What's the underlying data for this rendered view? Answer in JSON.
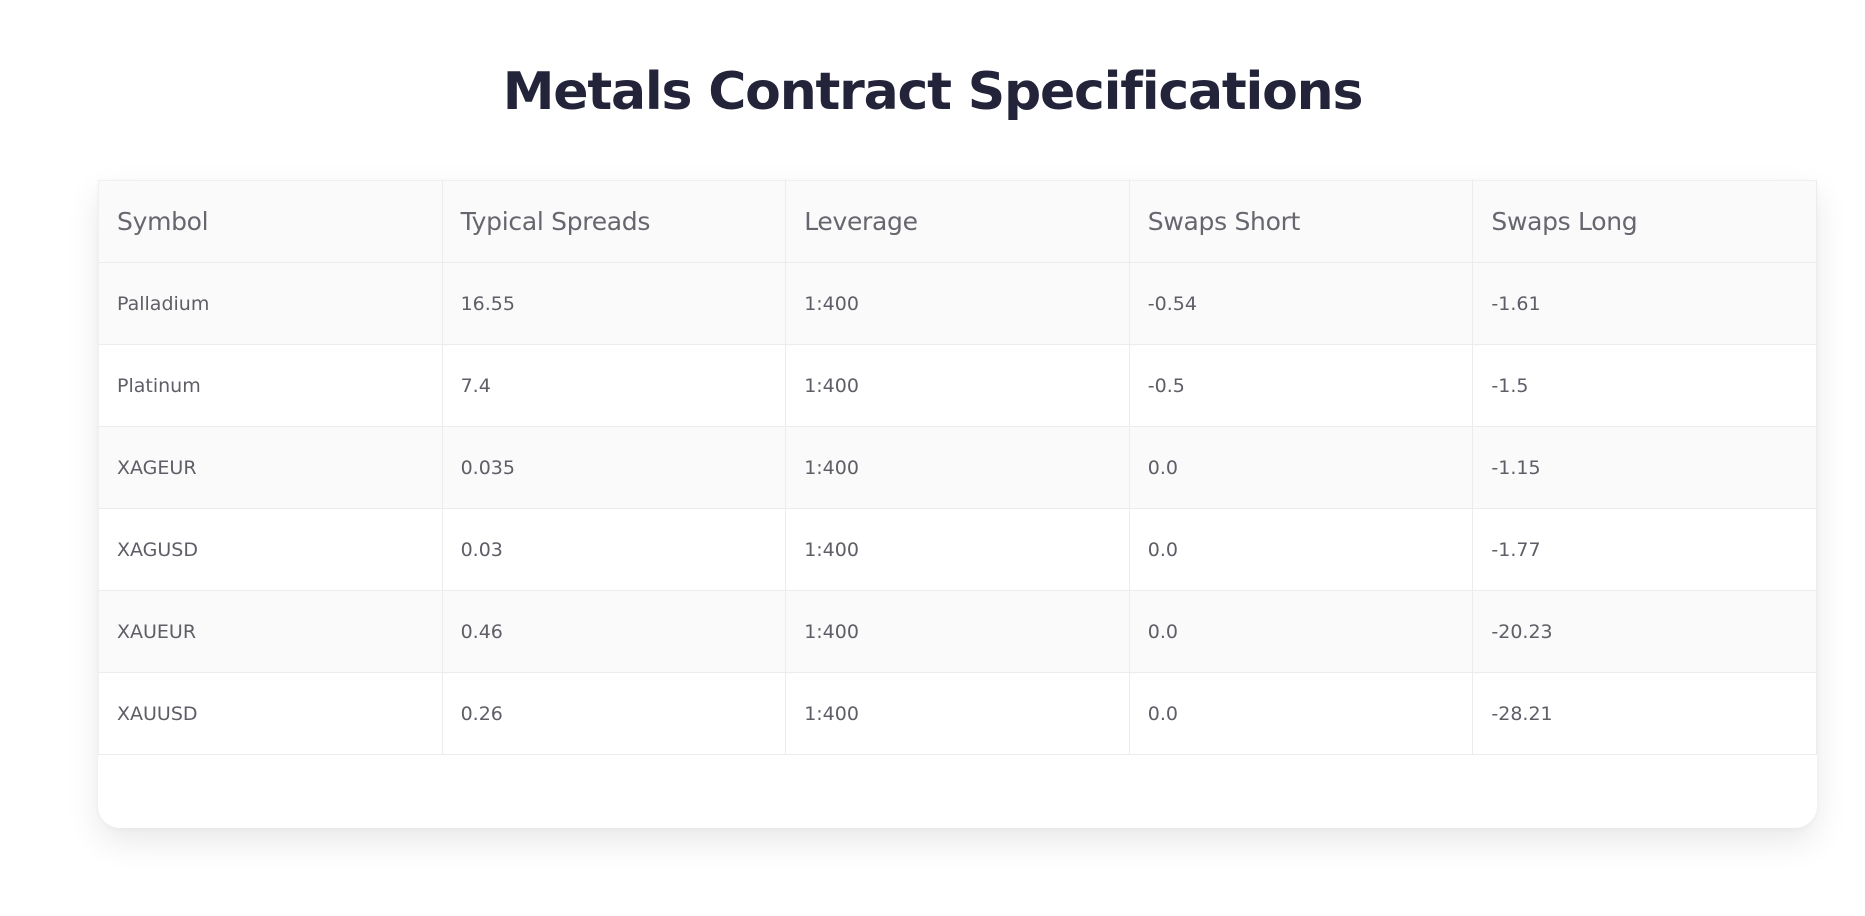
{
  "page": {
    "title": "Metals Contract Specifications"
  },
  "table": {
    "headers": [
      "Symbol",
      "Typical Spreads",
      "Leverage",
      "Swaps Short",
      "Swaps Long"
    ],
    "rows": [
      [
        "Palladium",
        "16.55",
        "1:400",
        "-0.54",
        "-1.61"
      ],
      [
        "Platinum",
        "7.4",
        "1:400",
        "-0.5",
        "-1.5"
      ],
      [
        "XAGEUR",
        "0.035",
        "1:400",
        "0.0",
        "-1.15"
      ],
      [
        "XAGUSD",
        "0.03",
        "1:400",
        "0.0",
        "-1.77"
      ],
      [
        "XAUEUR",
        "0.46",
        "1:400",
        "0.0",
        "-20.23"
      ],
      [
        "XAUUSD",
        "0.26",
        "1:400",
        "0.0",
        "-28.21"
      ]
    ]
  },
  "colors": {
    "title": "#23233a",
    "header_text": "#66666e",
    "cell_text": "#5e5e66",
    "grid_line": "#ececee",
    "row_alt": "#fafafa"
  }
}
